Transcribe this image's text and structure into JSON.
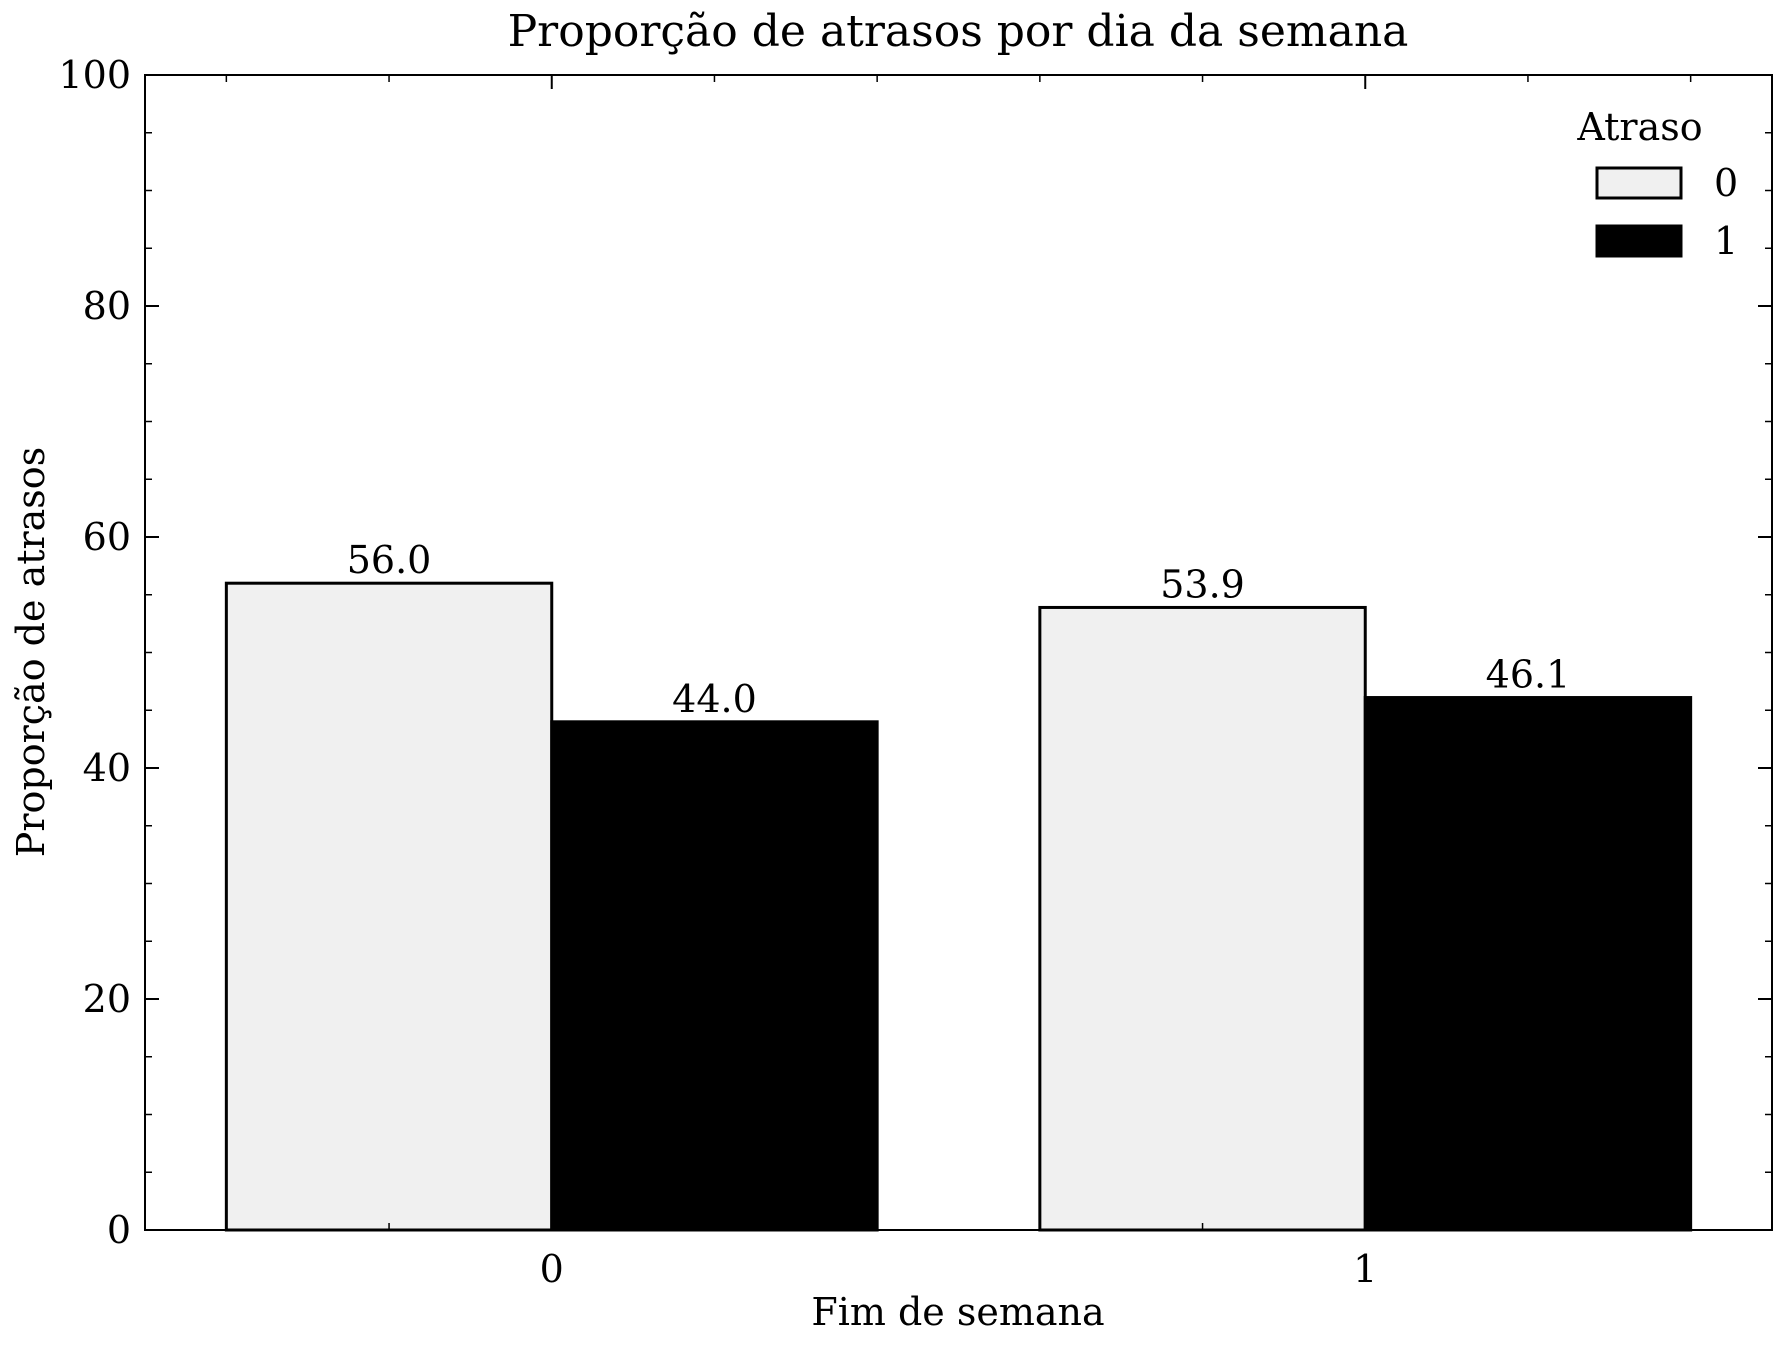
{
  "chart_data": {
    "type": "bar",
    "title": "Proporção de atrasos por dia da semana",
    "xlabel": "Fim de semana",
    "ylabel": "Proporção de atrasos",
    "categories": [
      "0",
      "1"
    ],
    "series": [
      {
        "name": "0",
        "values": [
          56.0,
          53.9
        ],
        "labels": [
          "56.0",
          "53.9"
        ],
        "color": "#f0f0f0"
      },
      {
        "name": "1",
        "values": [
          44.0,
          46.1
        ],
        "labels": [
          "44.0",
          "46.1"
        ],
        "color": "#000000"
      }
    ],
    "ylim": [
      0,
      100
    ],
    "yticks": [
      0,
      20,
      40,
      60,
      80,
      100
    ],
    "ytick_labels": [
      "0",
      "20",
      "40",
      "60",
      "80",
      "100"
    ],
    "grid": false,
    "legend": {
      "title": "Atraso",
      "placement": "top-right"
    }
  }
}
